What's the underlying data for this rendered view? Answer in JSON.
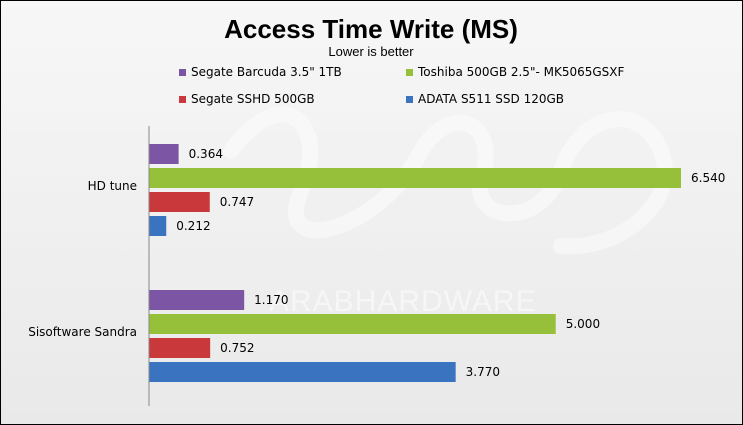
{
  "chart_data": {
    "type": "bar",
    "orientation": "horizontal",
    "title": "Access Time Write (MS)",
    "subtitle": "Lower is better",
    "categories": [
      "HD tune",
      "Sisoftware Sandra"
    ],
    "series": [
      {
        "name": "Segate Barcuda 3.5\" 1TB",
        "color": "#7d55a5",
        "values": [
          0.364,
          1.17
        ],
        "labels": [
          "0.364",
          "1.170"
        ]
      },
      {
        "name": "Toshiba 500GB 2.5\"- MK5065GSXF",
        "color": "#96bf3a",
        "values": [
          6.54,
          5.0
        ],
        "labels": [
          "6.540",
          "5.000"
        ]
      },
      {
        "name": "Segate SSHD 500GB",
        "color": "#c9383a",
        "values": [
          0.747,
          0.752
        ],
        "labels": [
          "0.747",
          "0.752"
        ]
      },
      {
        "name": "ADATA S511 SSD 120GB",
        "color": "#3a73bf",
        "values": [
          0.212,
          3.77
        ],
        "labels": [
          "0.212",
          "3.770"
        ]
      }
    ],
    "xlim": [
      0,
      7
    ],
    "grid": false,
    "legend_position": "top",
    "watermark": "ARABHARDWARE"
  }
}
